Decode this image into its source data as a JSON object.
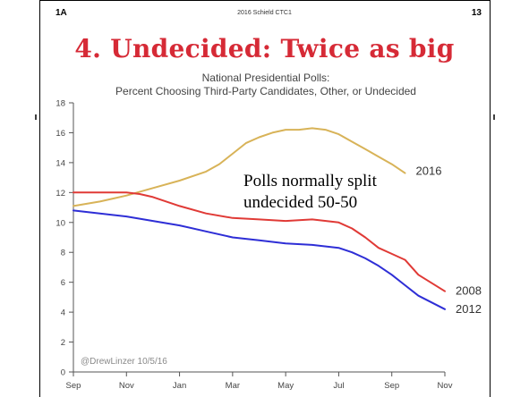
{
  "slide": {
    "id": "1A",
    "credit": "2016 Schield CTC1",
    "number": "13",
    "title": "4. Undecided: Twice as big"
  },
  "chart_data": {
    "type": "line",
    "title": "National Presidential Polls:",
    "subtitle": "Percent Choosing Third-Party Candidates, Other, or Undecided",
    "xlabel": "",
    "ylabel": "",
    "x_ticks": [
      "Sep",
      "Nov",
      "Jan",
      "Mar",
      "May",
      "Jul",
      "Sep",
      "Nov"
    ],
    "x_units": "months since September of the year before the election",
    "xlim": [
      0,
      14
    ],
    "ylim": [
      0,
      18
    ],
    "y_ticks": [
      0,
      2,
      4,
      6,
      8,
      10,
      12,
      14,
      16,
      18
    ],
    "grid": false,
    "series": [
      {
        "name": "2016",
        "color": "#d8b358",
        "x": [
          0,
          1,
          2,
          3,
          4,
          5,
          5.5,
          6,
          6.5,
          7,
          7.5,
          8,
          8.5,
          9,
          9.5,
          10,
          10.5,
          11,
          11.5,
          12,
          12.5
        ],
        "y": [
          11.1,
          11.4,
          11.8,
          12.3,
          12.8,
          13.4,
          13.9,
          14.6,
          15.3,
          15.7,
          16.0,
          16.2,
          16.2,
          16.3,
          16.2,
          15.9,
          15.4,
          14.9,
          14.4,
          13.9,
          13.3
        ]
      },
      {
        "name": "2008",
        "color": "#e03a36",
        "x": [
          0,
          1,
          2,
          2.5,
          3,
          4,
          5,
          6,
          7,
          8,
          9,
          10,
          10.5,
          11,
          11.5,
          12,
          12.5,
          13,
          14
        ],
        "y": [
          12.0,
          12.0,
          12.0,
          11.9,
          11.7,
          11.1,
          10.6,
          10.3,
          10.2,
          10.1,
          10.2,
          10.0,
          9.6,
          9.0,
          8.3,
          7.9,
          7.5,
          6.5,
          5.4
        ]
      },
      {
        "name": "2012",
        "color": "#2e2ed6",
        "x": [
          0,
          1,
          2,
          3,
          4,
          5,
          6,
          7,
          8,
          9,
          10,
          10.5,
          11,
          11.5,
          12,
          12.5,
          13,
          14
        ],
        "y": [
          10.8,
          10.6,
          10.4,
          10.1,
          9.8,
          9.4,
          9.0,
          8.8,
          8.6,
          8.5,
          8.3,
          8.0,
          7.6,
          7.1,
          6.5,
          5.8,
          5.1,
          4.2
        ]
      }
    ],
    "annotations": [
      "Polls normally split",
      "undecided 50-50"
    ],
    "watermark": "@DrewLinzer 10/5/16"
  }
}
